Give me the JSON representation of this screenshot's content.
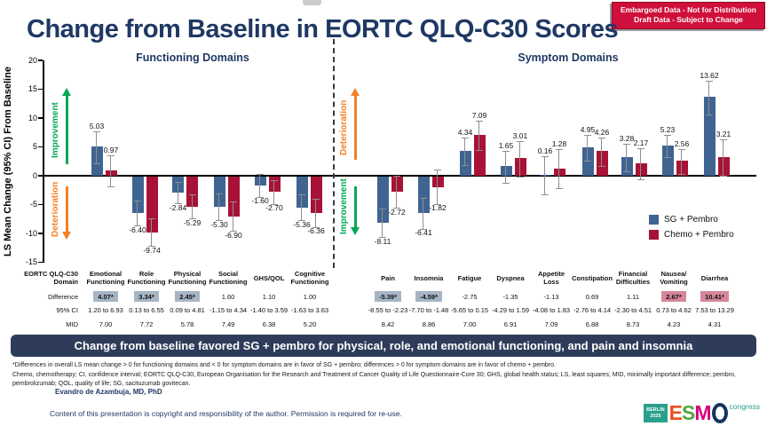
{
  "badge": {
    "line1": "Embargoed Data - Not for Distribution",
    "line2": "Draft Data - Subject to Change"
  },
  "title": "Change from Baseline in EORTC QLQ-C30 Scores",
  "chart_data": {
    "type": "bar",
    "ylabel": "LS Mean Change (95% CI) From Baseline",
    "ylim": [
      -15,
      20
    ],
    "yticks": [
      20,
      15,
      10,
      5,
      0,
      -5,
      -10,
      -15
    ],
    "grid": false,
    "legend_position": "bottom-right",
    "panels": [
      {
        "id": "functioning",
        "label": "Functioning Domains"
      },
      {
        "id": "symptom",
        "label": "Symptom Domains"
      }
    ],
    "series": [
      {
        "name": "SG + Pembro",
        "color": "#3f6491"
      },
      {
        "name": "Chemo + Pembro",
        "color": "#a81236"
      }
    ],
    "groups": [
      {
        "category": "Emotional Functioning",
        "panel": "functioning",
        "values": [
          5.03,
          0.97
        ],
        "ci_halfwidth": [
          2.7,
          2.6
        ]
      },
      {
        "category": "Role Functioning",
        "panel": "functioning",
        "values": [
          -6.4,
          -9.74
        ],
        "ci_halfwidth": [
          2.1,
          2.3
        ]
      },
      {
        "category": "Physical Functioning",
        "panel": "functioning",
        "values": [
          -2.84,
          -5.29
        ],
        "ci_halfwidth": [
          1.8,
          2.0
        ]
      },
      {
        "category": "Social Functioning",
        "panel": "functioning",
        "values": [
          -5.3,
          -6.9
        ],
        "ci_halfwidth": [
          2.3,
          2.5
        ]
      },
      {
        "category": "GHS/QOL",
        "panel": "functioning",
        "values": [
          -1.6,
          -2.7
        ],
        "ci_halfwidth": [
          1.9,
          2.0
        ]
      },
      {
        "category": "Cognitive Functioning",
        "panel": "functioning",
        "values": [
          -5.36,
          -6.36
        ],
        "ci_halfwidth": [
          2.2,
          2.4
        ]
      },
      {
        "category": "Pain",
        "panel": "symptom",
        "values": [
          -8.11,
          -2.72
        ],
        "ci_halfwidth": [
          2.4,
          2.7
        ]
      },
      {
        "category": "Insomnia",
        "panel": "symptom",
        "values": [
          -6.41,
          -1.82
        ],
        "ci_halfwidth": [
          2.6,
          2.9
        ]
      },
      {
        "category": "Fatigue",
        "panel": "symptom",
        "values": [
          4.34,
          7.09
        ],
        "ci_halfwidth": [
          2.3,
          2.5
        ]
      },
      {
        "category": "Dyspnea",
        "panel": "symptom",
        "values": [
          1.65,
          3.01
        ],
        "ci_halfwidth": [
          2.7,
          3.0
        ]
      },
      {
        "category": "Appetite Loss",
        "panel": "symptom",
        "values": [
          0.16,
          1.28
        ],
        "ci_halfwidth": [
          3.2,
          3.3
        ]
      },
      {
        "category": "Constipation",
        "panel": "symptom",
        "values": [
          4.95,
          4.26
        ],
        "ci_halfwidth": [
          2.2,
          2.4
        ]
      },
      {
        "category": "Financial Difficulties",
        "panel": "symptom",
        "values": [
          3.28,
          2.17
        ],
        "ci_halfwidth": [
          2.3,
          2.6
        ]
      },
      {
        "category": "Nausea/Vomiting",
        "panel": "symptom",
        "values": [
          5.23,
          2.56
        ],
        "ci_halfwidth": [
          1.9,
          2.1
        ]
      },
      {
        "category": "Diarrhea",
        "panel": "symptom",
        "values": [
          13.62,
          3.21
        ],
        "ci_halfwidth": [
          2.9,
          3.1
        ]
      }
    ],
    "annotations": {
      "functioning": {
        "up": "Improvement",
        "down": "Deterioration"
      },
      "symptom": {
        "up": "Deterioration",
        "down": "Improvement"
      },
      "colors": {
        "improvement": "#00a859",
        "deterioration": "#f58025"
      }
    }
  },
  "table": {
    "row_labels": [
      "EORTC QLQ-C30 Domain",
      "Difference",
      "95% CI",
      "MID"
    ],
    "highlight_colors": {
      "favors_sg": "#a6b5c4",
      "favors_chemo": "#d4879a"
    },
    "columns": [
      {
        "header": "Emotional Functioning",
        "difference": "4.07*",
        "ci": "1.20 to 6.93",
        "mid": "7.00",
        "highlight": "blue"
      },
      {
        "header": "Role Functioning",
        "difference": "3.34*",
        "ci": "0.13 to 6.55",
        "mid": "7.72",
        "highlight": "blue"
      },
      {
        "header": "Physical Functioning",
        "difference": "2.45*",
        "ci": "0.09 to 4.81",
        "mid": "5.78",
        "highlight": "blue"
      },
      {
        "header": "Social Functioning",
        "difference": "1.60",
        "ci": "-1.15 to 4.34",
        "mid": "7.49",
        "highlight": null
      },
      {
        "header": "GHS/QOL",
        "difference": "1.10",
        "ci": "-1.40 to 3.59",
        "mid": "6.38",
        "highlight": null
      },
      {
        "header": "Cognitive Functioning",
        "difference": "1.00",
        "ci": "-1.63 to 3.63",
        "mid": "5.20",
        "highlight": null
      },
      {
        "header": "Pain",
        "difference": "-5.39*",
        "ci": "-8.55 to -2.23",
        "mid": "8.42",
        "highlight": "blue"
      },
      {
        "header": "Insomnia",
        "difference": "-4.59*",
        "ci": "-7.70 to -1.48",
        "mid": "8.86",
        "highlight": "blue"
      },
      {
        "header": "Fatigue",
        "difference": "-2.75",
        "ci": "-5.65 to 0.15",
        "mid": "7.00",
        "highlight": null
      },
      {
        "header": "Dyspnea",
        "difference": "-1.35",
        "ci": "-4.29 to 1.59",
        "mid": "6.91",
        "highlight": null
      },
      {
        "header": "Appetite Loss",
        "difference": "-1.13",
        "ci": "-4.08 to 1.83",
        "mid": "7.09",
        "highlight": null
      },
      {
        "header": "Constipation",
        "difference": "0.69",
        "ci": "-2.76 to 4.14",
        "mid": "6.88",
        "highlight": null
      },
      {
        "header": "Financial Difficulties",
        "difference": "1.11",
        "ci": "-2.30 to 4.51",
        "mid": "8.73",
        "highlight": null
      },
      {
        "header": "Nausea/ Vomiting",
        "difference": "2.67*",
        "ci": "0.73 to 4.62",
        "mid": "4.23",
        "highlight": "pink"
      },
      {
        "header": "Diarrhea",
        "difference": "10.41*",
        "ci": "7.53 to 13.29",
        "mid": "4.31",
        "highlight": "pink"
      }
    ]
  },
  "banner": "Change from baseline favored SG + pembro for physical, role, and emotional functioning, and pain and insomnia",
  "footnotes": [
    "*Differences in overall LS mean change > 0 for functioning domains and < 0 for symptom domains are in favor of SG + pembro; differences > 0 for symptom domains are in favor of chemo + pembro.",
    "Chemo, chemotherapy; CI, confidence interval; EORTC QLQ-C30, European Organisation for the Research and Treatment of Cancer Quality of Life Questionnaire-Core 30; GHS, global health status; LS, least squares; MID, minimally important difference; pembro, pembrolizumab; QOL, quality of life; SG, sacituzumab govitecan."
  ],
  "author": "Evandro de Azambuja, MD, PhD",
  "copyright": "Content of this presentation is copyright and responsibility of the author. Permission is required for re-use.",
  "logo": {
    "venue_line1": "BERLIN",
    "venue_line2": "2025",
    "name": "ESMO",
    "letter_colors": [
      "#e94f1d",
      "#52a73d",
      "#d6007f",
      "#16335f"
    ],
    "suffix": "congress",
    "accent": "#29a08b"
  }
}
